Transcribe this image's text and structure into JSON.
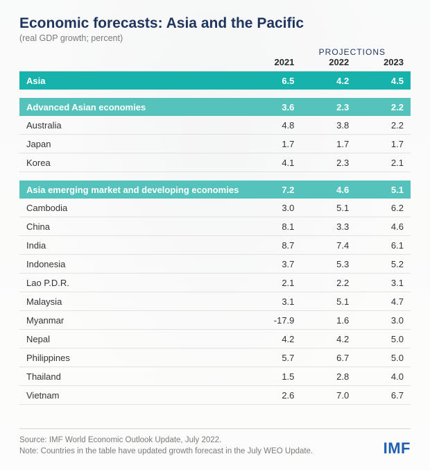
{
  "title": "Economic forecasts: Asia and the Pacific",
  "subtitle": "(real GDP growth; percent)",
  "projections_label": "PROJECTIONS",
  "columns": [
    "",
    "2021",
    "2022",
    "2023"
  ],
  "colors": {
    "title": "#1f355e",
    "subtitle": "#7a7a78",
    "header_bg_primary": "#17b2ac",
    "header_bg_secondary": "#55c2bc",
    "row_border": "#e3e2df",
    "body_text": "#333333",
    "logo": "#1f5fb0",
    "page_bg": "#fcfcfb"
  },
  "typography": {
    "title_fontsize": 21,
    "subtitle_fontsize": 12.5,
    "body_fontsize": 13,
    "footer_fontsize": 11.5,
    "logo_fontsize": 22,
    "font_family": "Arial, Helvetica, sans-serif"
  },
  "sections": [
    {
      "header": {
        "label": "Asia",
        "v2021": "6.5",
        "v2022": "4.2",
        "v2023": "4.5",
        "bg": "#17b2ac"
      },
      "rows": []
    },
    {
      "header": {
        "label": "Advanced Asian economies",
        "v2021": "3.6",
        "v2022": "2.3",
        "v2023": "2.2",
        "bg": "#55c2bc"
      },
      "rows": [
        {
          "label": "Australia",
          "v2021": "4.8",
          "v2022": "3.8",
          "v2023": "2.2"
        },
        {
          "label": "Japan",
          "v2021": "1.7",
          "v2022": "1.7",
          "v2023": "1.7"
        },
        {
          "label": "Korea",
          "v2021": "4.1",
          "v2022": "2.3",
          "v2023": "2.1"
        }
      ]
    },
    {
      "header": {
        "label": "Asia emerging market and developing economies",
        "v2021": "7.2",
        "v2022": "4.6",
        "v2023": "5.1",
        "bg": "#55c2bc"
      },
      "rows": [
        {
          "label": "Cambodia",
          "v2021": "3.0",
          "v2022": "5.1",
          "v2023": "6.2"
        },
        {
          "label": "China",
          "v2021": "8.1",
          "v2022": "3.3",
          "v2023": "4.6"
        },
        {
          "label": "India",
          "v2021": "8.7",
          "v2022": "7.4",
          "v2023": "6.1"
        },
        {
          "label": "Indonesia",
          "v2021": "3.7",
          "v2022": "5.3",
          "v2023": "5.2"
        },
        {
          "label": "Lao P.D.R.",
          "v2021": "2.1",
          "v2022": "2.2",
          "v2023": "3.1"
        },
        {
          "label": "Malaysia",
          "v2021": "3.1",
          "v2022": "5.1",
          "v2023": "4.7"
        },
        {
          "label": "Myanmar",
          "v2021": "-17.9",
          "v2022": "1.6",
          "v2023": "3.0"
        },
        {
          "label": "Nepal",
          "v2021": "4.2",
          "v2022": "4.2",
          "v2023": "5.0"
        },
        {
          "label": "Philippines",
          "v2021": "5.7",
          "v2022": "6.7",
          "v2023": "5.0"
        },
        {
          "label": "Thailand",
          "v2021": "1.5",
          "v2022": "2.8",
          "v2023": "4.0"
        },
        {
          "label": "Vietnam",
          "v2021": "2.6",
          "v2022": "7.0",
          "v2023": "6.7"
        }
      ]
    }
  ],
  "footer": {
    "source": "Source: IMF World Economic Outlook Update, July 2022.",
    "note": "Note: Countries in the table have updated growth forecast in the July WEO Update.",
    "logo_text": "IMF"
  }
}
